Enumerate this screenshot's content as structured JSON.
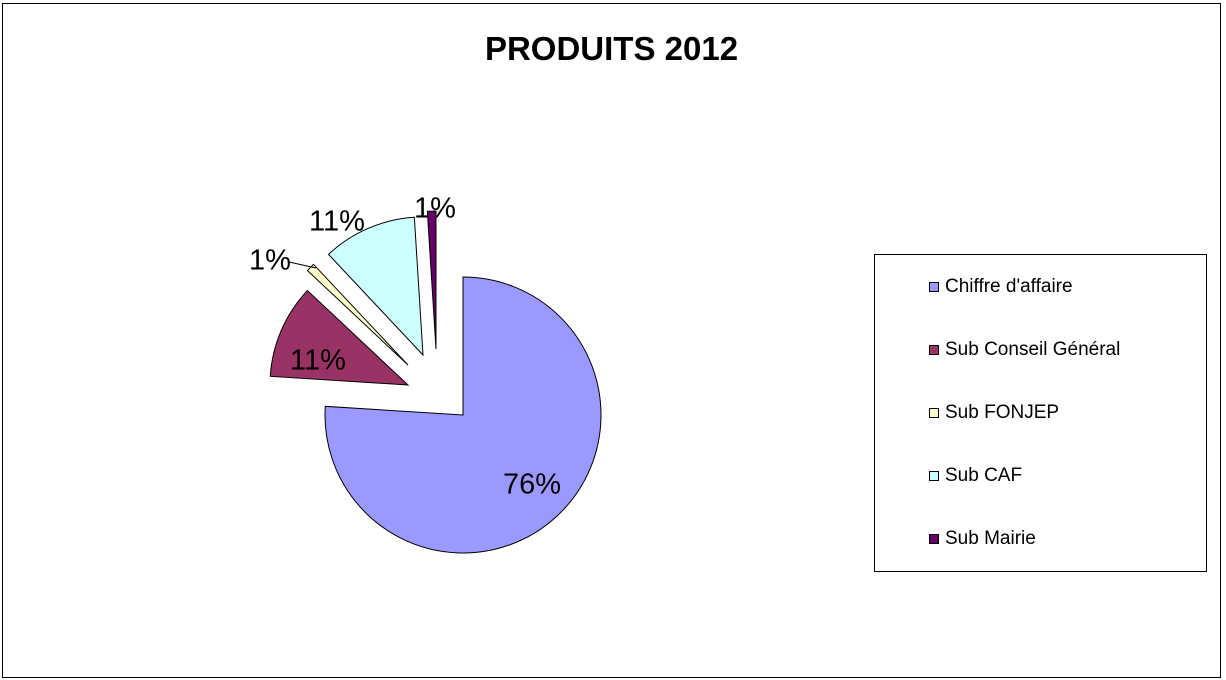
{
  "chart_data": {
    "type": "pie",
    "title": "PRODUITS 2012",
    "categories": [
      "Chiffre d'affaire",
      "Sub Conseil Général",
      "Sub FONJEP",
      "Sub CAF",
      "Sub Mairie"
    ],
    "values": [
      76,
      11,
      1,
      11,
      1
    ],
    "labels": [
      "76%",
      "11%",
      "1%",
      "11%",
      "1%"
    ],
    "colors": [
      "#9999ff",
      "#993366",
      "#ffffcc",
      "#ccffff",
      "#660066"
    ],
    "exploded": true,
    "legend_position": "right"
  }
}
